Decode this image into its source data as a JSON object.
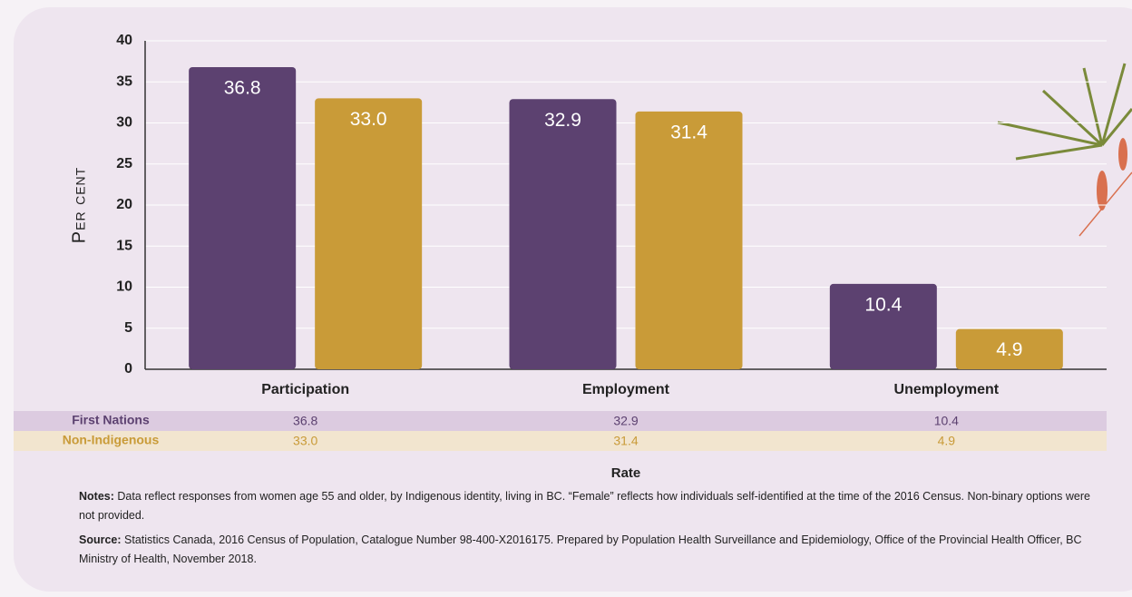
{
  "chart_data": {
    "type": "bar",
    "y_label": "Per cent",
    "x_label": "Rate",
    "categories": [
      "Participation",
      "Employment",
      "Unemployment"
    ],
    "series": [
      {
        "name": "First Nations",
        "color": "#5c4170",
        "values": [
          36.8,
          32.9,
          10.4
        ],
        "value_labels": [
          "36.8",
          "32.9",
          "10.4"
        ]
      },
      {
        "name": "Non-Indigenous",
        "color": "#c99b38",
        "values": [
          33.0,
          31.4,
          4.9
        ],
        "value_labels": [
          "33.0",
          "31.4",
          "4.9"
        ]
      }
    ],
    "ylim": [
      0,
      40
    ],
    "yticks": [
      0,
      5,
      10,
      15,
      20,
      25,
      30,
      35,
      40
    ],
    "grid": true
  },
  "notes": {
    "label": "Notes:",
    "text": "Data reflect responses from women age 55 and older, by Indigenous identity, living in BC. “Female” reflects how individuals self-identified at the time of the 2016 Census. Non-binary options were not provided."
  },
  "source": {
    "label": "Source:",
    "text": "Statistics Canada, 2016 Census of Population, Catalogue Number 98-400-X2016175. Prepared by Population Health Surveillance and Epidemiology, Office of the Provincial Health Officer, BC Ministry of Health, November 2018."
  }
}
